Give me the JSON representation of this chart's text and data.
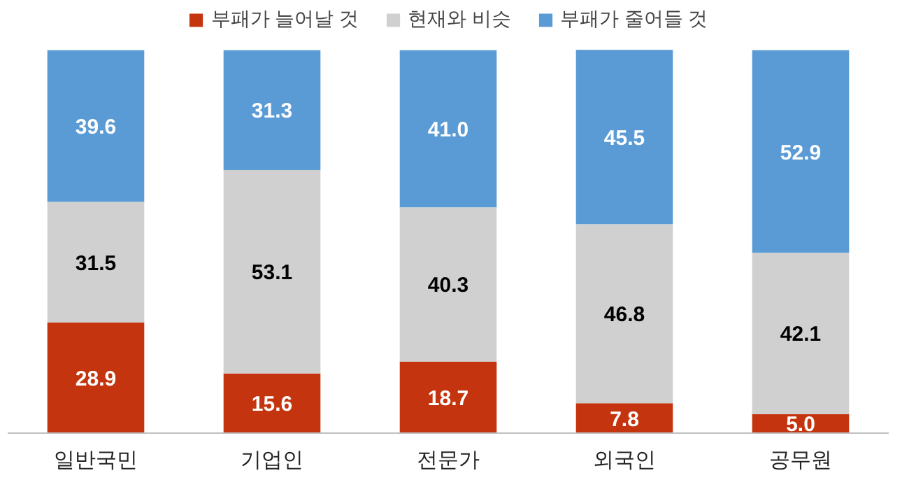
{
  "chart_data": {
    "type": "bar",
    "stacked": true,
    "categories": [
      "일반국민",
      "기업인",
      "전문가",
      "외국인",
      "공무원"
    ],
    "series": [
      {
        "name": "부패가 늘어날 것",
        "color": "#c4350f",
        "values": [
          28.9,
          15.6,
          18.7,
          7.8,
          5.0
        ],
        "value_labels": [
          "28.9",
          "15.6",
          "18.7",
          "7.8",
          "5.0"
        ]
      },
      {
        "name": "현재와 비슷",
        "color": "#d0d0d0",
        "values": [
          31.5,
          53.1,
          40.3,
          46.8,
          42.1
        ],
        "value_labels": [
          "31.5",
          "53.1",
          "40.3",
          "46.8",
          "42.1"
        ]
      },
      {
        "name": "부패가 줄어들 것",
        "color": "#5b9bd5",
        "values": [
          39.6,
          31.3,
          41.0,
          45.5,
          52.9
        ],
        "value_labels": [
          "39.6",
          "31.3",
          "41.0",
          "45.5",
          "52.9"
        ]
      }
    ],
    "legend": "top",
    "tick_labels": "x"
  }
}
